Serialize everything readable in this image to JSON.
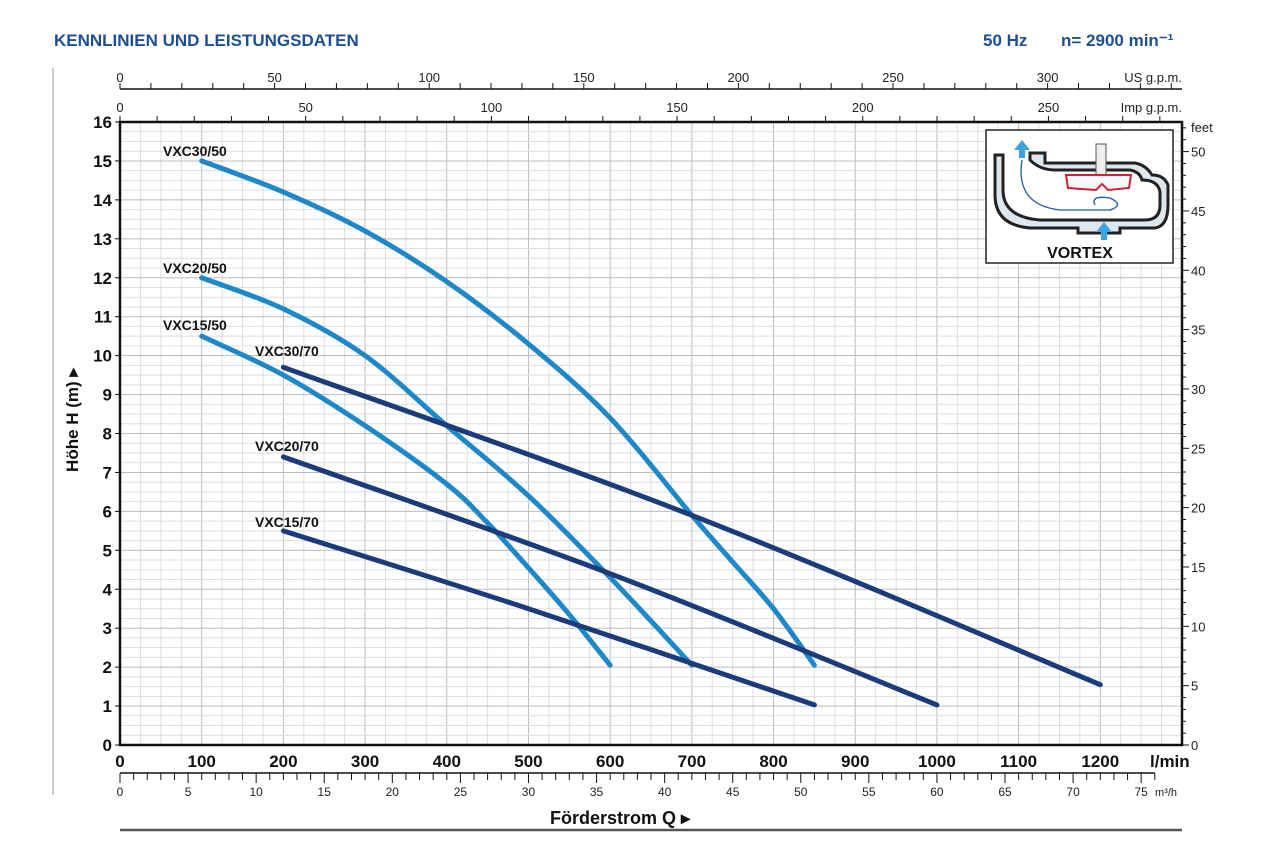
{
  "header": {
    "title": "KENNLINIEN UND LEISTUNGSDATEN",
    "freq": "50 Hz",
    "speed": "n= 2900 min⁻¹"
  },
  "inset": {
    "label": "VORTEX"
  },
  "colors": {
    "curve50": "#1e88c9",
    "curve70": "#1b3b7a",
    "title": "#1d4f91"
  },
  "chart_data": {
    "type": "line",
    "title": "KENNLINIEN UND LEISTUNGSDATEN",
    "xlabel": "Förderstrom Q ▸",
    "ylabel": "Höhe H (m) ▸",
    "x_unit": "l/min",
    "xlim": [
      0,
      1300
    ],
    "ylim": [
      0,
      16
    ],
    "grid": true,
    "x_ticks": [
      0,
      100,
      200,
      300,
      400,
      500,
      600,
      700,
      800,
      900,
      1000,
      1100,
      1200
    ],
    "y_ticks": [
      0,
      1,
      2,
      3,
      4,
      5,
      6,
      7,
      8,
      9,
      10,
      11,
      12,
      13,
      14,
      15,
      16
    ],
    "secondary_axes": {
      "m3h": {
        "unit": "m³/h",
        "ticks": [
          0,
          5,
          10,
          15,
          20,
          25,
          30,
          35,
          40,
          45,
          50,
          55,
          60,
          65,
          70,
          75
        ]
      },
      "us_gpm": {
        "unit": "US g.p.m.",
        "ticks": [
          0,
          50,
          100,
          150,
          200,
          250,
          300
        ]
      },
      "imp_gpm": {
        "unit": "Imp g.p.m.",
        "ticks": [
          0,
          50,
          100,
          150,
          200,
          250
        ]
      },
      "feet": {
        "unit": "feet",
        "ticks": [
          0,
          5,
          10,
          15,
          20,
          25,
          30,
          35,
          40,
          45,
          50
        ]
      }
    },
    "series": [
      {
        "name": "VXC30/50",
        "family": "50",
        "x": [
          100,
          200,
          300,
          400,
          500,
          600,
          700,
          750,
          800,
          850
        ],
        "y": [
          15,
          14.2,
          13.2,
          11.9,
          10.3,
          8.4,
          5.9,
          4.7,
          3.5,
          2.05
        ]
      },
      {
        "name": "VXC20/50",
        "family": "50",
        "x": [
          100,
          200,
          300,
          400,
          500,
          600,
          700
        ],
        "y": [
          12,
          11.2,
          10.0,
          8.2,
          6.4,
          4.3,
          2.05
        ]
      },
      {
        "name": "VXC15/50",
        "family": "50",
        "x": [
          100,
          200,
          300,
          400,
          450,
          500,
          550,
          600
        ],
        "y": [
          10.5,
          9.5,
          8.2,
          6.7,
          5.7,
          4.55,
          3.35,
          2.05
        ]
      },
      {
        "name": "VXC30/70",
        "family": "70",
        "x": [
          200,
          700,
          1200
        ],
        "y": [
          9.7,
          5.9,
          1.55
        ]
      },
      {
        "name": "VXC20/70",
        "family": "70",
        "x": [
          200,
          600,
          1000
        ],
        "y": [
          7.4,
          4.4,
          1.03
        ]
      },
      {
        "name": "VXC15/70",
        "family": "70",
        "x": [
          200,
          500,
          850
        ],
        "y": [
          5.5,
          3.5,
          1.03
        ]
      }
    ]
  }
}
